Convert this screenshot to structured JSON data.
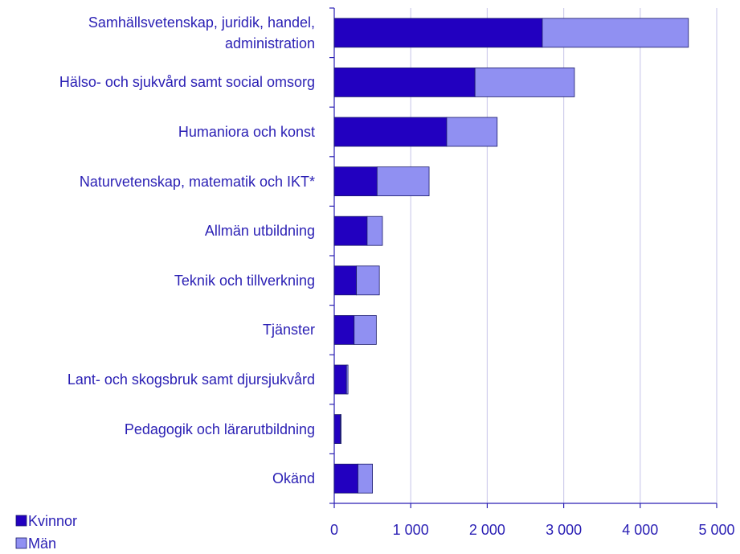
{
  "chart_data": {
    "type": "stacked-barh",
    "categories": [
      "Samhällsvetenskap, juridik, handel, administration",
      "Hälso- och sjukvård samt social omsorg",
      "Humaniora och konst",
      "Naturvetenskap, matematik och IKT*",
      "Allmän utbildning",
      "Teknik och tillverkning",
      "Tjänster",
      "Lant- och skogsbruk samt djursjukvård",
      "Pedagogik och lärarutbildning",
      "Okänd"
    ],
    "series": [
      {
        "name": "Kvinnor",
        "color": "#2200c0",
        "values": [
          2720,
          1840,
          1470,
          560,
          430,
          290,
          260,
          160,
          80,
          310
        ]
      },
      {
        "name": "Män",
        "color": "#9090f2",
        "values": [
          1910,
          1300,
          660,
          680,
          200,
          300,
          290,
          20,
          10,
          190
        ]
      }
    ],
    "xlim": [
      0,
      5000
    ],
    "xticks": [
      0,
      {
        "value": 1000,
        "label": "1 000"
      },
      {
        "value": 2000,
        "label": "2 000"
      },
      {
        "value": 3000,
        "label": "3 000"
      },
      {
        "value": 4000,
        "label": "4 000"
      },
      {
        "value": 5000,
        "label": "5 000"
      }
    ],
    "grid": true
  }
}
